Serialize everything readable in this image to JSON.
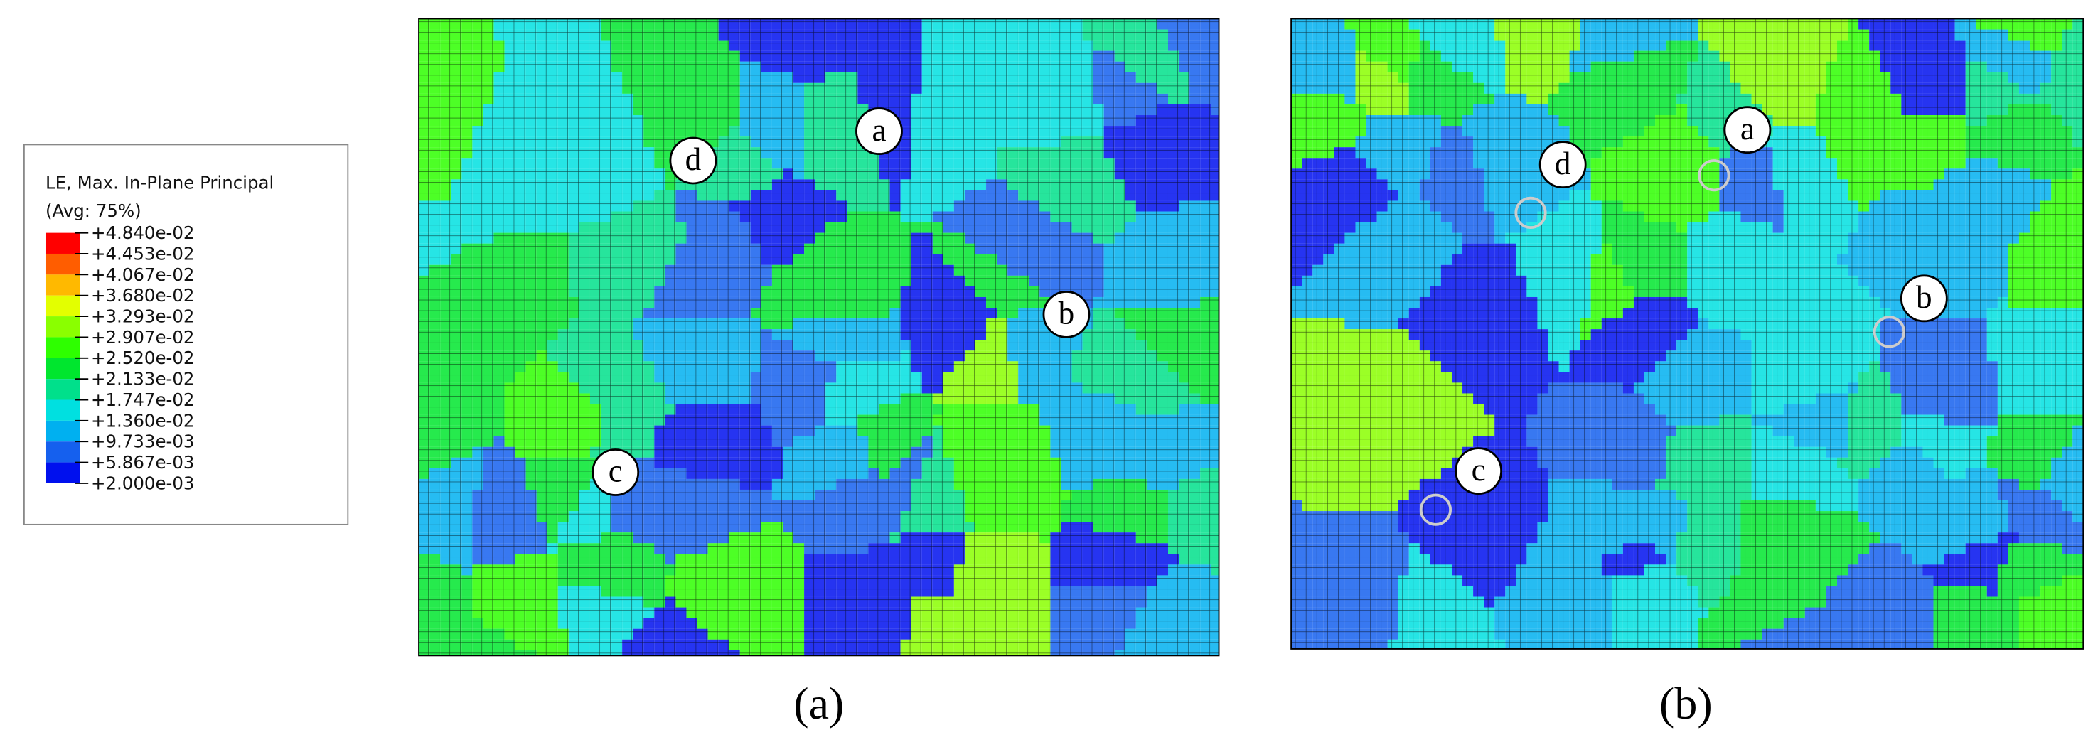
{
  "legend": {
    "title": "LE, Max. In-Plane Principal",
    "subtitle": "(Avg: 75%)",
    "levels": [
      "+4.840e-02",
      "+4.453e-02",
      "+4.067e-02",
      "+3.680e-02",
      "+3.293e-02",
      "+2.907e-02",
      "+2.520e-02",
      "+2.133e-02",
      "+1.747e-02",
      "+1.360e-02",
      "+9.733e-03",
      "+5.867e-03",
      "+2.000e-03"
    ],
    "colors": [
      "#ff0000",
      "#ff5d00",
      "#ffb900",
      "#e3ff00",
      "#8aff00",
      "#2eff00",
      "#00e62e",
      "#00e08b",
      "#00e0e0",
      "#00b0f0",
      "#1560ee",
      "#0010ee"
    ]
  },
  "panels": [
    {
      "label": "(a)",
      "markers": [
        "a",
        "d",
        "b",
        "c"
      ]
    },
    {
      "label": "(b)",
      "markers": [
        "a",
        "d",
        "b",
        "c"
      ]
    }
  ]
}
